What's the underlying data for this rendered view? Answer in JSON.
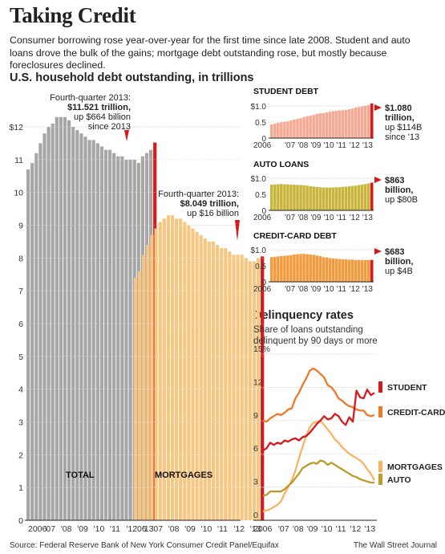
{
  "header": {
    "title": "Taking Credit",
    "subtitle": "Consumer borrowing rose year-over-year for the first time since late 2008. Student and auto loans drove the bulk of the gains; mortgage debt outstanding rose, but mostly because foreclosures declined."
  },
  "footer": {
    "source": "Source: Federal Reserve Bank of New York Consumer Credit Panel/Equifax",
    "credit": "The Wall Street Journal"
  },
  "colors": {
    "total": "#a6a6a6",
    "mortgage": "#f7c680",
    "student": "#f5a992",
    "auto": "#c9b43a",
    "credit_card": "#f39a3c",
    "red_accent": "#d7191c",
    "line_student": "#d7191c",
    "line_credit_card": "#f0782a",
    "line_mortgages": "#f8b462",
    "line_auto": "#bd9a2a"
  },
  "chart_data": [
    {
      "id": "household",
      "type": "bar",
      "title": "U.S. household debt outstanding, in trillions",
      "ylim": [
        0,
        12.5
      ],
      "y_ticks": [
        {
          "value": 12,
          "label": "$12"
        },
        {
          "value": 11,
          "label": "11"
        },
        {
          "value": 10,
          "label": "10"
        },
        {
          "value": 9,
          "label": "9"
        },
        {
          "value": 8,
          "label": "8"
        },
        {
          "value": 7,
          "label": "7"
        },
        {
          "value": 6,
          "label": "6"
        },
        {
          "value": 5,
          "label": "5"
        },
        {
          "value": 4,
          "label": "4"
        },
        {
          "value": 3,
          "label": "3"
        },
        {
          "value": 2,
          "label": "2"
        },
        {
          "value": 1,
          "label": "1"
        },
        {
          "value": 0,
          "label": "0"
        }
      ],
      "quarters": [
        "2006Q1",
        "2006Q2",
        "2006Q3",
        "2006Q4",
        "2007Q1",
        "2007Q2",
        "2007Q3",
        "2007Q4",
        "2008Q1",
        "2008Q2",
        "2008Q3",
        "2008Q4",
        "2009Q1",
        "2009Q2",
        "2009Q3",
        "2009Q4",
        "2010Q1",
        "2010Q2",
        "2010Q3",
        "2010Q4",
        "2011Q1",
        "2011Q2",
        "2011Q3",
        "2011Q4",
        "2012Q1",
        "2012Q2",
        "2012Q3",
        "2012Q4",
        "2013Q1",
        "2013Q2",
        "2013Q3",
        "2013Q4"
      ],
      "x_labels_total": [
        "2006",
        "'07",
        "'08",
        "'09",
        "'10",
        "'11",
        "'12",
        "'13"
      ],
      "x_labels_mortgage": [
        "'06",
        "'07",
        "'08",
        "'09",
        "'10",
        "'11",
        "'12",
        "'13"
      ],
      "series": [
        {
          "name": "TOTAL",
          "values": [
            10.7,
            10.9,
            11.2,
            11.5,
            11.8,
            12.0,
            12.1,
            12.3,
            12.3,
            12.3,
            12.2,
            12.0,
            11.9,
            11.8,
            11.7,
            11.6,
            11.6,
            11.5,
            11.4,
            11.3,
            11.3,
            11.2,
            11.1,
            11.1,
            11.0,
            11.0,
            11.0,
            10.9,
            11.1,
            11.2,
            11.3,
            11.521
          ],
          "annotation": {
            "line1": "Fourth-quarter 2013:",
            "line2": "$11.521 trillion,",
            "line3": "up $664 billion",
            "line4": "since 2013"
          }
        },
        {
          "name": "MORTGAGES",
          "values": [
            7.4,
            7.6,
            8.1,
            8.4,
            8.7,
            8.9,
            9.1,
            9.2,
            9.3,
            9.3,
            9.2,
            9.2,
            9.1,
            9.0,
            8.9,
            8.8,
            8.7,
            8.6,
            8.5,
            8.5,
            8.4,
            8.3,
            8.3,
            8.2,
            8.1,
            8.1,
            8.1,
            8.0,
            7.9,
            7.9,
            8.0,
            8.049
          ],
          "annotation": {
            "line1": "Fourth-quarter 2013:",
            "line2": "$8.049 trillion,",
            "line3": "up $16 billion"
          }
        }
      ]
    },
    {
      "id": "student",
      "type": "bar",
      "title": "STUDENT DEBT",
      "y_ticks": [
        {
          "value": 1.0,
          "label": "$1.0"
        },
        {
          "value": 0.5,
          "label": "0.5"
        },
        {
          "value": 0,
          "label": "0"
        }
      ],
      "ylim": [
        0,
        1.1
      ],
      "x_labels": [
        "2006",
        "'07",
        "'08",
        "'09",
        "'10",
        "'11",
        "'12",
        "'13"
      ],
      "values": [
        0.43,
        0.45,
        0.47,
        0.49,
        0.51,
        0.52,
        0.55,
        0.58,
        0.6,
        0.62,
        0.65,
        0.68,
        0.7,
        0.72,
        0.75,
        0.77,
        0.78,
        0.8,
        0.82,
        0.84,
        0.85,
        0.86,
        0.87,
        0.88,
        0.9,
        0.92,
        0.95,
        0.97,
        0.99,
        1.01,
        1.03,
        1.08
      ],
      "annotation": {
        "line1": "$1.080",
        "line2": "trillion,",
        "line3": "up $114B",
        "line4": "since '13"
      }
    },
    {
      "id": "auto",
      "type": "bar",
      "title": "AUTO LOANS",
      "y_ticks": [
        {
          "value": 1.0,
          "label": "$1.0"
        },
        {
          "value": 0.5,
          "label": "0.5"
        },
        {
          "value": 0,
          "label": "0"
        }
      ],
      "ylim": [
        0,
        1.1
      ],
      "x_labels": [
        "2006",
        "'07",
        "'08",
        "'09",
        "'10",
        "'11",
        "'12",
        "'13"
      ],
      "values": [
        0.8,
        0.81,
        0.81,
        0.82,
        0.81,
        0.81,
        0.8,
        0.8,
        0.79,
        0.79,
        0.78,
        0.77,
        0.75,
        0.74,
        0.73,
        0.72,
        0.71,
        0.71,
        0.71,
        0.71,
        0.72,
        0.72,
        0.73,
        0.74,
        0.75,
        0.76,
        0.77,
        0.79,
        0.8,
        0.82,
        0.84,
        0.863
      ],
      "annotation": {
        "line1": "$863",
        "line2": "billion,",
        "line3": "up $80B"
      }
    },
    {
      "id": "creditcard",
      "type": "bar",
      "title": "CREDIT-CARD DEBT",
      "y_ticks": [
        {
          "value": 1.0,
          "label": "$1.0"
        },
        {
          "value": 0.5,
          "label": "0.5"
        },
        {
          "value": 0,
          "label": "0"
        }
      ],
      "ylim": [
        0,
        1.1
      ],
      "x_labels": [
        "2006",
        "'07",
        "'08",
        "'09",
        "'10",
        "'11",
        "'12",
        "'13"
      ],
      "values": [
        0.77,
        0.78,
        0.79,
        0.8,
        0.81,
        0.82,
        0.83,
        0.85,
        0.86,
        0.87,
        0.87,
        0.86,
        0.85,
        0.84,
        0.82,
        0.8,
        0.77,
        0.76,
        0.74,
        0.73,
        0.72,
        0.71,
        0.7,
        0.7,
        0.69,
        0.69,
        0.68,
        0.68,
        0.68,
        0.68,
        0.68,
        0.683
      ],
      "annotation": {
        "line1": "$683",
        "line2": "billion,",
        "line3": "up $4B"
      }
    },
    {
      "id": "delinquency",
      "type": "line",
      "title": "Delinquency rates",
      "subtitle_line1": "Share of loans outstanding",
      "subtitle_line2": "delinquent by 90 days or more",
      "ylim": [
        0,
        15
      ],
      "y_ticks": [
        {
          "value": 15,
          "label": "15%"
        },
        {
          "value": 12,
          "label": "12"
        },
        {
          "value": 9,
          "label": "9"
        },
        {
          "value": 6,
          "label": "6"
        },
        {
          "value": 3,
          "label": "3"
        },
        {
          "value": 0,
          "label": "0"
        }
      ],
      "x_labels": [
        "2006",
        "'07",
        "'08",
        "'09",
        "'10",
        "'11",
        "'12",
        "'13"
      ],
      "series": [
        {
          "name": "STUDENT",
          "values": [
            6.3,
            6.5,
            7.0,
            6.8,
            7.0,
            6.9,
            7.2,
            7.1,
            7.3,
            7.4,
            7.2,
            7.5,
            7.6,
            7.9,
            8.3,
            8.7,
            9.0,
            9.4,
            9.1,
            9.2,
            9.6,
            9.4,
            8.9,
            8.6,
            9.3,
            8.9,
            11.7,
            11.1,
            11.0,
            11.8,
            11.3,
            11.5
          ]
        },
        {
          "name": "CREDIT-CARD",
          "values": [
            9.0,
            8.9,
            9.2,
            9.4,
            9.6,
            9.5,
            9.7,
            10.0,
            10.1,
            11.0,
            11.5,
            12.2,
            12.8,
            13.5,
            13.7,
            13.5,
            13.2,
            12.9,
            12.2,
            12.0,
            11.6,
            11.0,
            10.8,
            10.5,
            10.3,
            10.2,
            10.0,
            9.9,
            9.9,
            9.5,
            9.4,
            9.5
          ]
        },
        {
          "name": "MORTGAGES",
          "values": [
            0.8,
            0.9,
            1.0,
            1.2,
            1.4,
            1.7,
            2.4,
            3.0,
            3.6,
            4.5,
            5.6,
            6.6,
            7.6,
            8.4,
            8.8,
            8.9,
            9.0,
            8.6,
            8.2,
            7.8,
            7.3,
            7.0,
            6.6,
            6.3,
            6.0,
            5.8,
            5.6,
            5.4,
            5.1,
            4.6,
            4.2,
            3.6
          ]
        },
        {
          "name": "AUTO",
          "values": [
            2.2,
            2.3,
            2.6,
            2.6,
            2.6,
            2.6,
            2.8,
            3.1,
            3.4,
            3.8,
            4.2,
            4.7,
            4.9,
            5.1,
            5.2,
            5.1,
            5.4,
            5.3,
            5.0,
            5.2,
            5.0,
            4.8,
            4.6,
            4.4,
            4.2,
            4.0,
            3.9,
            3.7,
            3.6,
            3.5,
            3.4,
            3.4
          ]
        }
      ]
    }
  ]
}
